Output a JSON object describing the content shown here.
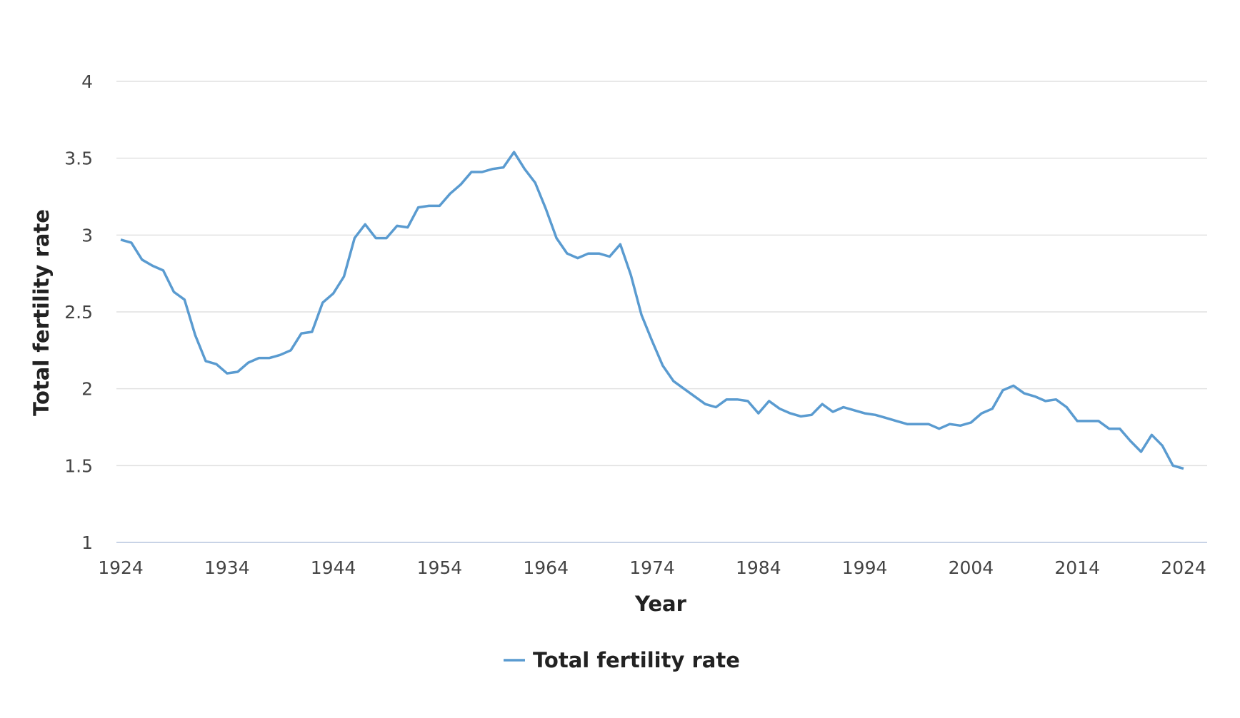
{
  "chart_data": {
    "type": "line",
    "title": "",
    "xlabel": "Year",
    "ylabel": "Total fertility rate",
    "xlim": [
      1923.5,
      2025
    ],
    "ylim": [
      1,
      4
    ],
    "grid": true,
    "legend_position": "bottom-center",
    "x_ticks": [
      "1924",
      "1934",
      "1944",
      "1954",
      "1964",
      "1974",
      "1984",
      "1994",
      "2004",
      "2014",
      "2024"
    ],
    "y_ticks": [
      "1",
      "1.5",
      "2",
      "2.5",
      "3",
      "3.5",
      "4"
    ],
    "color": "#5a9bd0",
    "series": [
      {
        "name": "Total fertility rate",
        "x_start": 1924,
        "values": [
          2.97,
          2.95,
          2.84,
          2.8,
          2.77,
          2.63,
          2.58,
          2.35,
          2.18,
          2.16,
          2.1,
          2.11,
          2.17,
          2.2,
          2.2,
          2.22,
          2.25,
          2.36,
          2.37,
          2.56,
          2.62,
          2.73,
          2.98,
          3.07,
          2.98,
          2.98,
          3.06,
          3.05,
          3.18,
          3.19,
          3.19,
          3.27,
          3.33,
          3.41,
          3.41,
          3.43,
          3.44,
          3.54,
          3.43,
          3.34,
          3.17,
          2.98,
          2.88,
          2.85,
          2.88,
          2.88,
          2.86,
          2.94,
          2.74,
          2.48,
          2.31,
          2.15,
          2.05,
          2.0,
          1.95,
          1.9,
          1.88,
          1.93,
          1.93,
          1.92,
          1.84,
          1.92,
          1.87,
          1.84,
          1.82,
          1.83,
          1.9,
          1.85,
          1.88,
          1.86,
          1.84,
          1.83,
          1.81,
          1.79,
          1.77,
          1.77,
          1.77,
          1.74,
          1.77,
          1.76,
          1.78,
          1.84,
          1.87,
          1.99,
          2.02,
          1.97,
          1.95,
          1.92,
          1.93,
          1.88,
          1.79,
          1.79,
          1.79,
          1.74,
          1.74,
          1.66,
          1.59,
          1.7,
          1.63,
          1.5,
          1.48
        ]
      }
    ]
  }
}
